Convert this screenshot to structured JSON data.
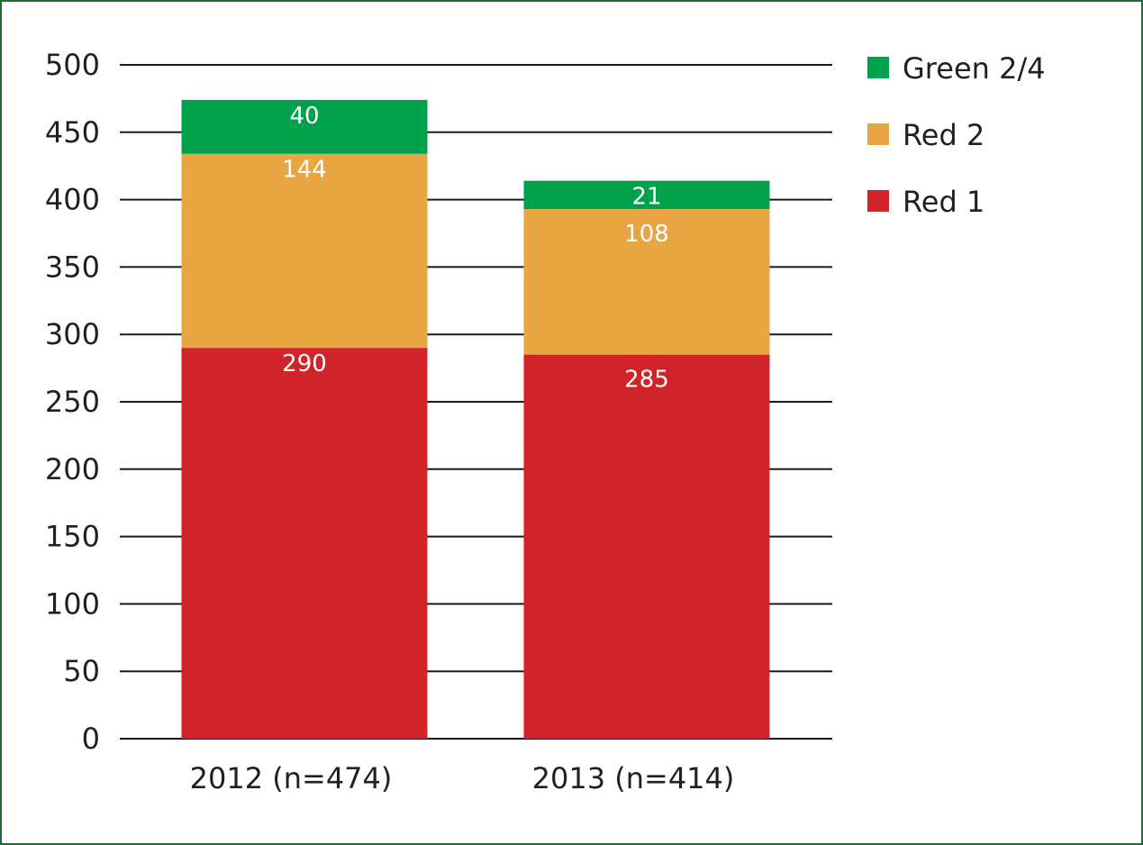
{
  "chart_data": {
    "type": "bar",
    "stacked": true,
    "title": "",
    "xlabel": "",
    "ylabel": "",
    "ylim": [
      0,
      500
    ],
    "yticks": [
      0,
      50,
      100,
      150,
      200,
      250,
      300,
      350,
      400,
      450,
      500
    ],
    "grid": true,
    "legend_position": "top-right",
    "categories": [
      "2012 (n=474)",
      "2013 (n=414)"
    ],
    "series": [
      {
        "name": "Red 1",
        "color": "#d2232a",
        "values": [
          290,
          285
        ],
        "labels": [
          "290",
          "285"
        ]
      },
      {
        "name": "Red 2",
        "color": "#e8a541",
        "values": [
          144,
          108
        ],
        "labels": [
          "144",
          "108"
        ]
      },
      {
        "name": "Green 2/4",
        "color": "#00a14b",
        "values": [
          40,
          21
        ],
        "labels": [
          "40",
          "21"
        ]
      }
    ]
  }
}
